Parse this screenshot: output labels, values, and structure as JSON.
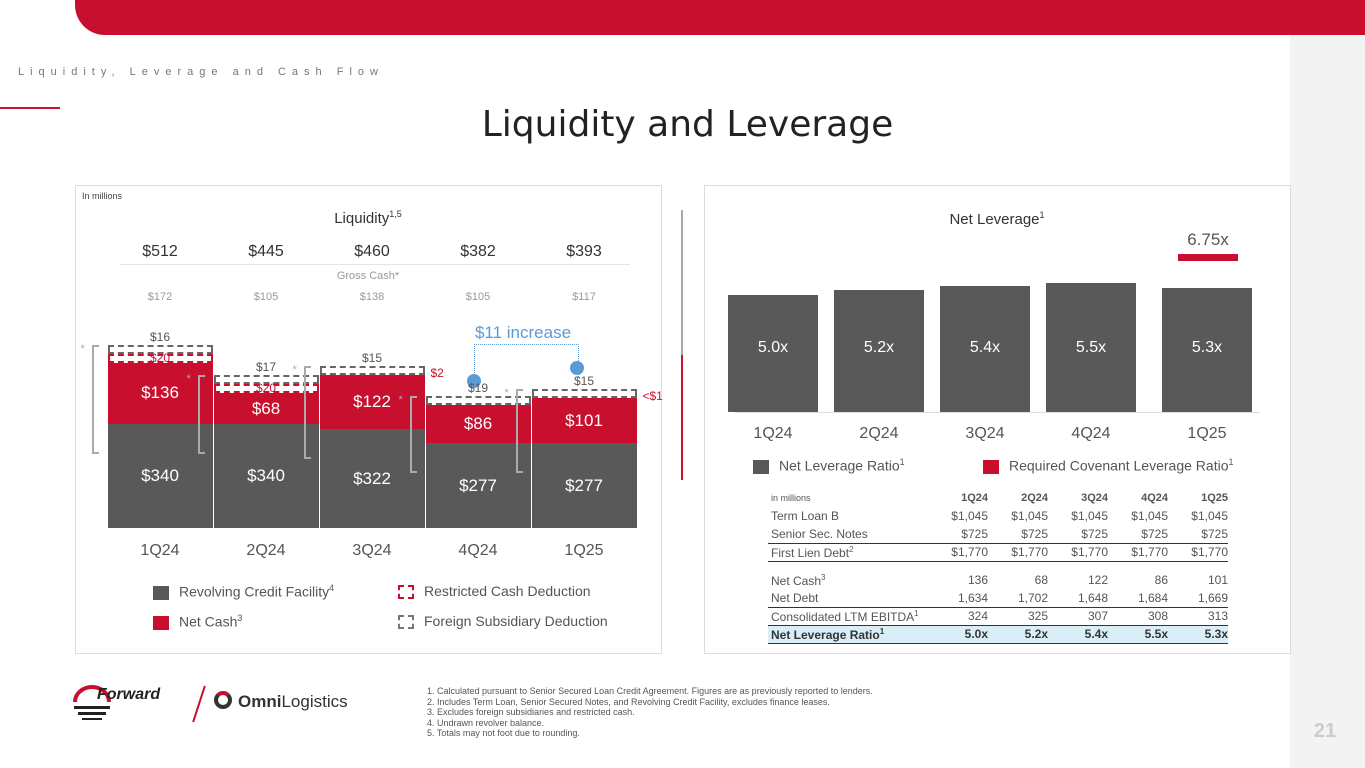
{
  "header": {
    "subtitle": "Liquidity, Leverage and Cash Flow",
    "title": "Liquidity and Leverage",
    "page_number": "21"
  },
  "colors": {
    "brand_red": "#c8102e",
    "bar_gray": "#595959",
    "increase_blue": "#5b9bd5"
  },
  "chart_data": [
    {
      "type": "bar",
      "title": "Liquidity",
      "title_sup": "1,5",
      "units_note": "In millions",
      "categories": [
        "1Q24",
        "2Q24",
        "3Q24",
        "4Q24",
        "1Q25"
      ],
      "totals": [
        "$512",
        "$445",
        "$460",
        "$382",
        "$393"
      ],
      "gross_cash_label": "Gross Cash*",
      "gross_cash": [
        "$172",
        "$105",
        "$138",
        "$105",
        "$117"
      ],
      "series": [
        {
          "name": "Revolving Credit Facility",
          "sup": "4",
          "values": [
            340,
            340,
            322,
            277,
            277
          ],
          "labels": [
            "$340",
            "$340",
            "$322",
            "$277",
            "$277"
          ]
        },
        {
          "name": "Net Cash",
          "sup": "3",
          "values": [
            136,
            68,
            122,
            86,
            101
          ],
          "labels": [
            "$136",
            "$68",
            "$122",
            "$86",
            "$101"
          ]
        },
        {
          "name": "Restricted Cash Deduction",
          "labels": [
            "$20",
            "$20",
            "$2",
            "<$1",
            "<$1"
          ]
        },
        {
          "name": "Foreign Subsidiary Deduction",
          "labels": [
            "$16",
            "$17",
            "$15",
            "$19",
            "$15"
          ]
        }
      ],
      "annotation": "$11 increase",
      "asterisk": "*"
    },
    {
      "type": "bar",
      "title": "Net Leverage",
      "title_sup": "1",
      "categories": [
        "1Q24",
        "2Q24",
        "3Q24",
        "4Q24",
        "1Q25"
      ],
      "series": [
        {
          "name": "Net Leverage Ratio",
          "sup": "1",
          "values": [
            5.0,
            5.2,
            5.4,
            5.5,
            5.3
          ],
          "labels": [
            "5.0x",
            "5.2x",
            "5.4x",
            "5.5x",
            "5.3x"
          ]
        },
        {
          "name": "Required Covenant Leverage Ratio",
          "sup": "1",
          "values": [
            null,
            null,
            null,
            null,
            6.75
          ],
          "label": "6.75x"
        }
      ]
    }
  ],
  "table": {
    "units": "in millions",
    "columns": [
      "1Q24",
      "2Q24",
      "3Q24",
      "4Q24",
      "1Q25"
    ],
    "rows": [
      {
        "label": "Term Loan B",
        "sup": "",
        "values": [
          "$1,045",
          "$1,045",
          "$1,045",
          "$1,045",
          "$1,045"
        ]
      },
      {
        "label": "Senior Sec. Notes",
        "sup": "",
        "values": [
          "$725",
          "$725",
          "$725",
          "$725",
          "$725"
        ]
      },
      {
        "label": "First Lien Debt",
        "sup": "2",
        "values": [
          "$1,770",
          "$1,770",
          "$1,770",
          "$1,770",
          "$1,770"
        ]
      },
      {
        "label": "Net Cash",
        "sup": "3",
        "values": [
          "136",
          "68",
          "122",
          "86",
          "101"
        ]
      },
      {
        "label": "Net Debt",
        "sup": "",
        "values": [
          "1,634",
          "1,702",
          "1,648",
          "1,684",
          "1,669"
        ]
      },
      {
        "label": "Consolidated LTM EBITDA",
        "sup": "1",
        "values": [
          "324",
          "325",
          "307",
          "308",
          "313"
        ]
      },
      {
        "label": "Net Leverage Ratio",
        "sup": "1",
        "values": [
          "5.0x",
          "5.2x",
          "5.4x",
          "5.5x",
          "5.3x"
        ]
      }
    ]
  },
  "footnotes": [
    "1.  Calculated pursuant to Senior Secured Loan Credit Agreement. Figures are as previously reported to lenders.",
    "2.  Includes Term Loan, Senior Secured Notes, and Revolving Credit Facility, excludes finance leases.",
    "3.  Excludes foreign subsidiaries and restricted cash.",
    "4.  Undrawn revolver balance.",
    "5.  Totals may not foot due to rounding."
  ],
  "logos": {
    "forward": "Forward",
    "omni_bold": "Omni",
    "omni_light": "Logistics"
  }
}
